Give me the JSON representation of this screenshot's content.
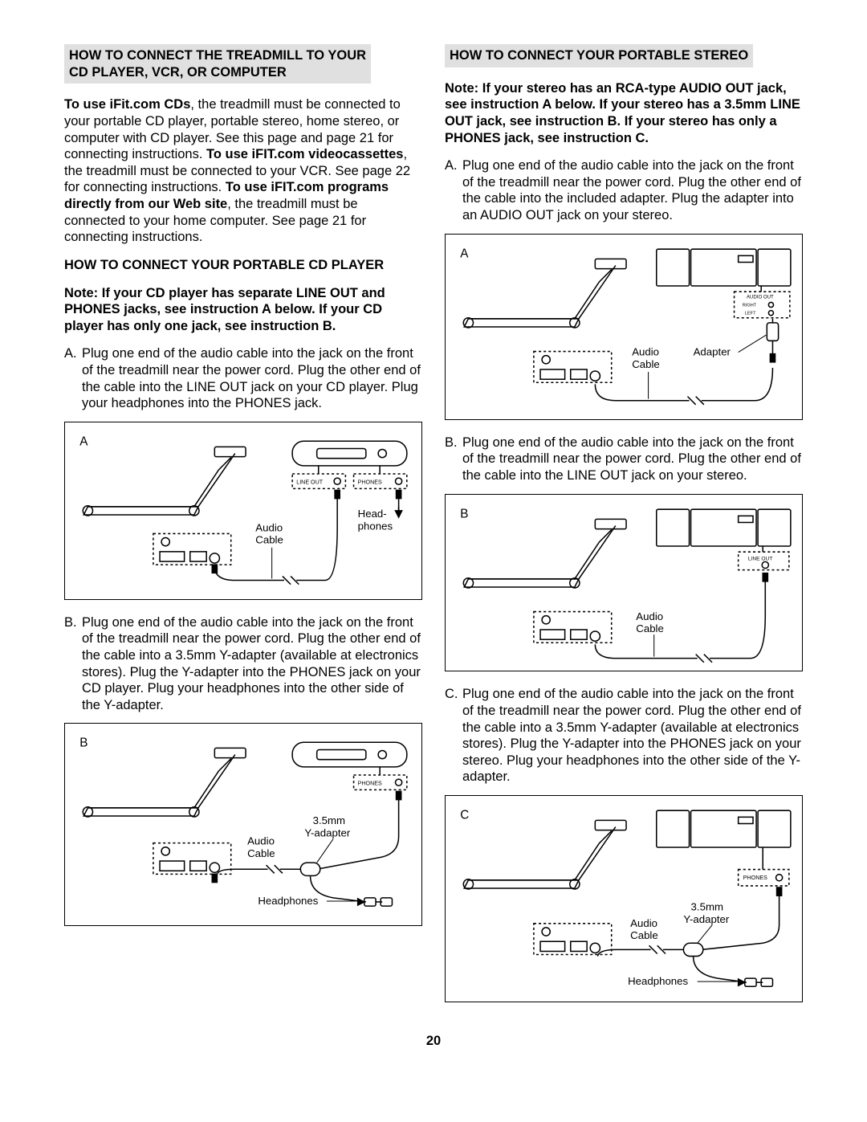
{
  "left": {
    "heading_l1": "HOW TO CONNECT THE TREADMILL TO YOUR",
    "heading_l2": "CD PLAYER, VCR, OR COMPUTER",
    "intro_html": "<span class='bold'>To use iFit.com CDs</span>, the treadmill must be connected to your portable CD player, portable stereo, home stereo, or computer with CD player. See this page and page 21 for connecting instructions. <span class='bold'>To use iFIT.com videocassettes</span>, the treadmill must be connected to your VCR. See page 22 for connecting instructions. <span class='bold'>To use iFIT.com programs directly from our Web site</span>, the treadmill must be connected to your home computer. See page 21 for connecting instructions.",
    "sub1": "HOW TO CONNECT YOUR PORTABLE CD PLAYER",
    "note1": "Note: If your CD player has separate LINE OUT and PHONES jacks, see instruction A below. If your CD player has only one jack, see instruction B.",
    "stepA_marker": "A.",
    "stepA": "Plug one end of the audio cable into the jack on the front of the treadmill near the power cord. Plug the other end of the cable into the LINE OUT jack on your CD player. Plug your headphones into the PHONES jack.",
    "stepB_marker": "B.",
    "stepB": "Plug one end of the audio cable into the jack on the front of the treadmill near the power cord. Plug the other end of the cable into a 3.5mm Y-adapter (available at electronics stores). Plug the Y-adapter into the PHONES jack on your CD player. Plug your headphones into the other side of the Y-adapter."
  },
  "right": {
    "heading": "HOW TO CONNECT YOUR PORTABLE STEREO",
    "note": "Note: If your stereo has an RCA-type AUDIO OUT jack, see instruction A below. If your stereo has a 3.5mm LINE OUT jack, see instruction B. If your stereo has only a PHONES jack, see instruction C.",
    "stepA_marker": "A.",
    "stepA": "Plug one end of the audio cable into the jack on the front of the treadmill near the power cord. Plug the other end of the cable into the included adapter. Plug the adapter into an AUDIO OUT jack on your stereo.",
    "stepB_marker": "B.",
    "stepB": "Plug one end of the audio cable into the jack on the front of the treadmill near the power cord. Plug the other end of the cable into the LINE OUT jack on your stereo.",
    "stepC_marker": "C.",
    "stepC": "Plug one end of the audio cable into the jack on the front of the treadmill near the power cord. Plug the other end of the cable into a 3.5mm Y-adapter (available at electronics stores). Plug the Y-adapter into the PHONES jack on your stereo. Plug your headphones into the other side of the Y-adapter."
  },
  "diagrams": {
    "labels": {
      "audio_cable": "Audio",
      "audio_cable2": "Cable",
      "headphones_l1": "Head-",
      "headphones_l2": "phones",
      "headphones": "Headphones",
      "y_adapter_l1": "3.5mm",
      "y_adapter_l2": "Y-adapter",
      "adapter": "Adapter",
      "line_out": "LINE OUT",
      "phones": "PHONES",
      "audio_out": "AUDIO OUT",
      "right_ch": "RIGHT",
      "left_ch": "LEFT"
    },
    "letters": {
      "A": "A",
      "B": "B",
      "C": "C"
    },
    "style": {
      "stroke": "#000000",
      "stroke_width": 1.5,
      "font_family": "Arial, Helvetica, sans-serif",
      "label_fontsize": 13,
      "small_label_fontsize": 7,
      "letter_fontsize": 15,
      "dash": "3,3",
      "background": "#ffffff"
    }
  },
  "page_number": "20"
}
